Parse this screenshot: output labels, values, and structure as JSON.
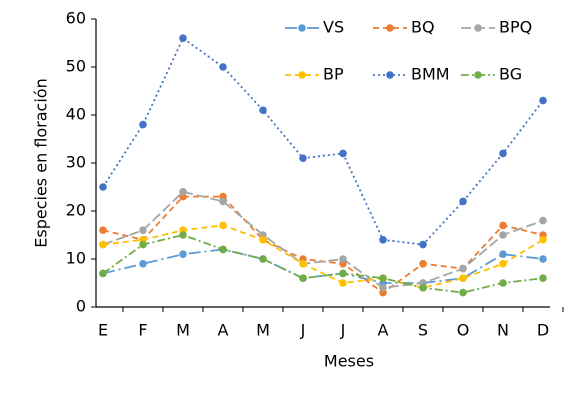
{
  "chart_data": {
    "type": "line",
    "x_label": "Meses",
    "y_label": "Especies en floración",
    "categories": [
      "E",
      "F",
      "M",
      "A",
      "M",
      "J",
      "J",
      "A",
      "S",
      "O",
      "N",
      "D"
    ],
    "series": [
      {
        "name": "VS",
        "color": "#5b9bd5",
        "style": "longdashdot",
        "values": [
          7,
          9,
          11,
          12,
          10,
          6,
          7,
          5,
          5,
          6,
          11,
          10
        ]
      },
      {
        "name": "BQ",
        "color": "#ed7d31",
        "style": "dashed",
        "values": [
          16,
          14,
          23,
          23,
          14,
          10,
          9,
          3,
          9,
          8,
          17,
          15
        ]
      },
      {
        "name": "BPQ",
        "color": "#a5a5a5",
        "style": "longdash",
        "values": [
          13,
          16,
          24,
          22,
          15,
          9,
          10,
          4,
          5,
          8,
          15,
          18
        ]
      },
      {
        "name": "BP",
        "color": "#ffc000",
        "style": "dashed",
        "values": [
          13,
          14,
          16,
          17,
          14,
          9,
          5,
          6,
          4,
          6,
          9,
          14
        ]
      },
      {
        "name": "BMM",
        "color": "#4472c4",
        "style": "dotted",
        "values": [
          25,
          38,
          56,
          50,
          41,
          31,
          32,
          14,
          13,
          22,
          32,
          43
        ]
      },
      {
        "name": "BG",
        "color": "#70ad47",
        "style": "dashdot",
        "values": [
          7,
          13,
          15,
          12,
          10,
          6,
          7,
          6,
          4,
          3,
          5,
          6
        ]
      }
    ],
    "ylim": [
      0,
      60
    ],
    "yticks": [
      0,
      10,
      20,
      30,
      40,
      50,
      60
    ],
    "legend": "top-right"
  }
}
